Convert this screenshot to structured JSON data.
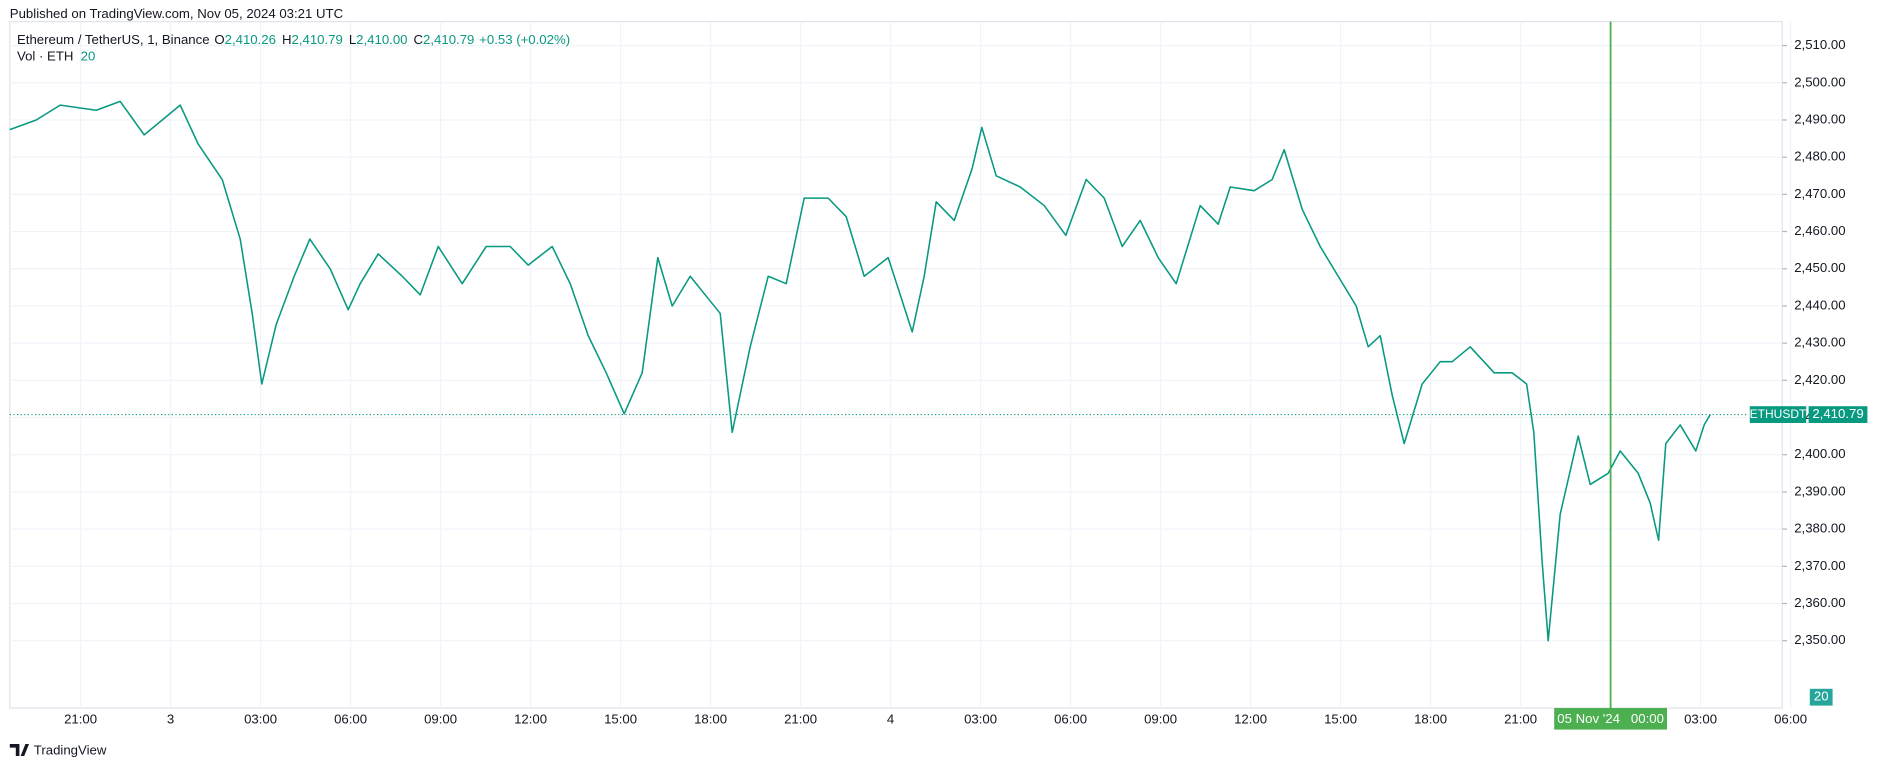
{
  "header": "Published on TradingView.com, Nov 05, 2024 03:21 UTC",
  "footer": "TradingView",
  "chart_data": {
    "type": "line",
    "symbol": "Ethereum / TetherUS, 1, Binance",
    "ohlc": [
      {
        "key": "O",
        "value": "2,410.26"
      },
      {
        "key": "H",
        "value": "2,410.79"
      },
      {
        "key": "L",
        "value": "2,410.00"
      },
      {
        "key": "C",
        "value": "2,410.79"
      }
    ],
    "change": "+0.53 (+0.02%)",
    "volume_label": "Vol · ETH",
    "volume_value": 20,
    "x": [
      -5.36,
      -4.48,
      -3.68,
      -2.48,
      -1.68,
      -0.88,
      0.32,
      0.92,
      1.72,
      2.32,
      2.72,
      3.04,
      3.52,
      4.12,
      4.64,
      5.32,
      5.92,
      6.32,
      6.92,
      7.72,
      8.32,
      8.92,
      9.72,
      10.52,
      11.32,
      11.92,
      12.72,
      13.32,
      13.92,
      14.52,
      15.12,
      15.72,
      16.24,
      16.72,
      17.32,
      17.92,
      18.32,
      18.72,
      19.32,
      19.92,
      20.52,
      21.12,
      21.92,
      22.52,
      23.12,
      23.92,
      24.72,
      25.12,
      25.52,
      26.12,
      26.72,
      27.04,
      27.52,
      28.32,
      29.12,
      29.84,
      30.52,
      31.12,
      31.72,
      32.32,
      32.92,
      33.52,
      34.32,
      34.92,
      35.32,
      36.12,
      36.72,
      37.12,
      37.72,
      38.32,
      38.92,
      39.52,
      39.92,
      40.32,
      40.72,
      41.12,
      41.72,
      42.32,
      42.72,
      43.32,
      44.12,
      44.72,
      45.2,
      45.44,
      45.72,
      45.92,
      46.32,
      46.92,
      47.32,
      47.92,
      48.32,
      48.92,
      49.32,
      49.6,
      49.84,
      50.32,
      50.84,
      51.12,
      51.32
    ],
    "series": [
      {
        "name": "ETHUSDT",
        "color": "#089981",
        "values": [
          2487.4,
          2490,
          2494,
          2492.6,
          2495,
          2486,
          2494,
          2483.5,
          2474,
          2458,
          2438,
          2419,
          2435,
          2448,
          2458,
          2450,
          2439,
          2446,
          2454,
          2448,
          2443,
          2456,
          2446,
          2456,
          2456,
          2451,
          2456,
          2446,
          2432,
          2422,
          2411,
          2422,
          2453,
          2440,
          2448,
          2442,
          2438,
          2406,
          2429,
          2448,
          2446,
          2469,
          2469,
          2464,
          2448,
          2453,
          2433,
          2448,
          2468,
          2463,
          2477,
          2488,
          2475,
          2472,
          2467,
          2459,
          2474,
          2469,
          2456,
          2463,
          2453,
          2446,
          2467,
          2462,
          2472,
          2471,
          2474,
          2482,
          2466,
          2456,
          2448,
          2440,
          2429,
          2432,
          2416,
          2403,
          2419,
          2425,
          2425,
          2429,
          2422,
          2422,
          2419,
          2406,
          2371,
          2350,
          2384,
          2405,
          2392,
          2395,
          2401,
          2395,
          2387,
          2377,
          2403,
          2408,
          2401,
          2408,
          2410.79
        ]
      }
    ],
    "last_price": {
      "value": 2410.79,
      "label": "2,410.79"
    },
    "crosshair": {
      "value": 48,
      "label": "05 Nov '24   00:00"
    },
    "xlim": [
      -5.36,
      53.72
    ],
    "xticks": [
      {
        "value": -3,
        "label": "21:00"
      },
      {
        "value": 0,
        "label": "3"
      },
      {
        "value": 3,
        "label": "03:00"
      },
      {
        "value": 6,
        "label": "06:00"
      },
      {
        "value": 9,
        "label": "09:00"
      },
      {
        "value": 12,
        "label": "12:00"
      },
      {
        "value": 15,
        "label": "15:00"
      },
      {
        "value": 18,
        "label": "18:00"
      },
      {
        "value": 21,
        "label": "21:00"
      },
      {
        "value": 24,
        "label": "4"
      },
      {
        "value": 27,
        "label": "03:00"
      },
      {
        "value": 30,
        "label": "06:00"
      },
      {
        "value": 33,
        "label": "09:00"
      },
      {
        "value": 36,
        "label": "12:00"
      },
      {
        "value": 39,
        "label": "15:00"
      },
      {
        "value": 42,
        "label": "18:00"
      },
      {
        "value": 45,
        "label": "21:00"
      },
      {
        "value": 51,
        "label": "03:00"
      },
      {
        "value": 54,
        "label": "06:00"
      }
    ],
    "ylim": [
      2331.9,
      2516.45
    ],
    "yticks": [
      {
        "value": 2350,
        "label": "2,350.00"
      },
      {
        "value": 2360,
        "label": "2,360.00"
      },
      {
        "value": 2370,
        "label": "2,370.00"
      },
      {
        "value": 2380,
        "label": "2,380.00"
      },
      {
        "value": 2390,
        "label": "2,390.00"
      },
      {
        "value": 2400,
        "label": "2,400.00"
      },
      {
        "value": 2410,
        "label": "2,410.00"
      },
      {
        "value": 2420,
        "label": "2,420.00"
      },
      {
        "value": 2430,
        "label": "2,430.00"
      },
      {
        "value": 2440,
        "label": "2,440.00"
      },
      {
        "value": 2450,
        "label": "2,450.00"
      },
      {
        "value": 2460,
        "label": "2,460.00"
      },
      {
        "value": 2470,
        "label": "2,470.00"
      },
      {
        "value": 2480,
        "label": "2,480.00"
      },
      {
        "value": 2490,
        "label": "2,490.00"
      },
      {
        "value": 2500,
        "label": "2,500.00"
      },
      {
        "value": 2510,
        "label": "2,510.00"
      }
    ],
    "grid": true
  }
}
